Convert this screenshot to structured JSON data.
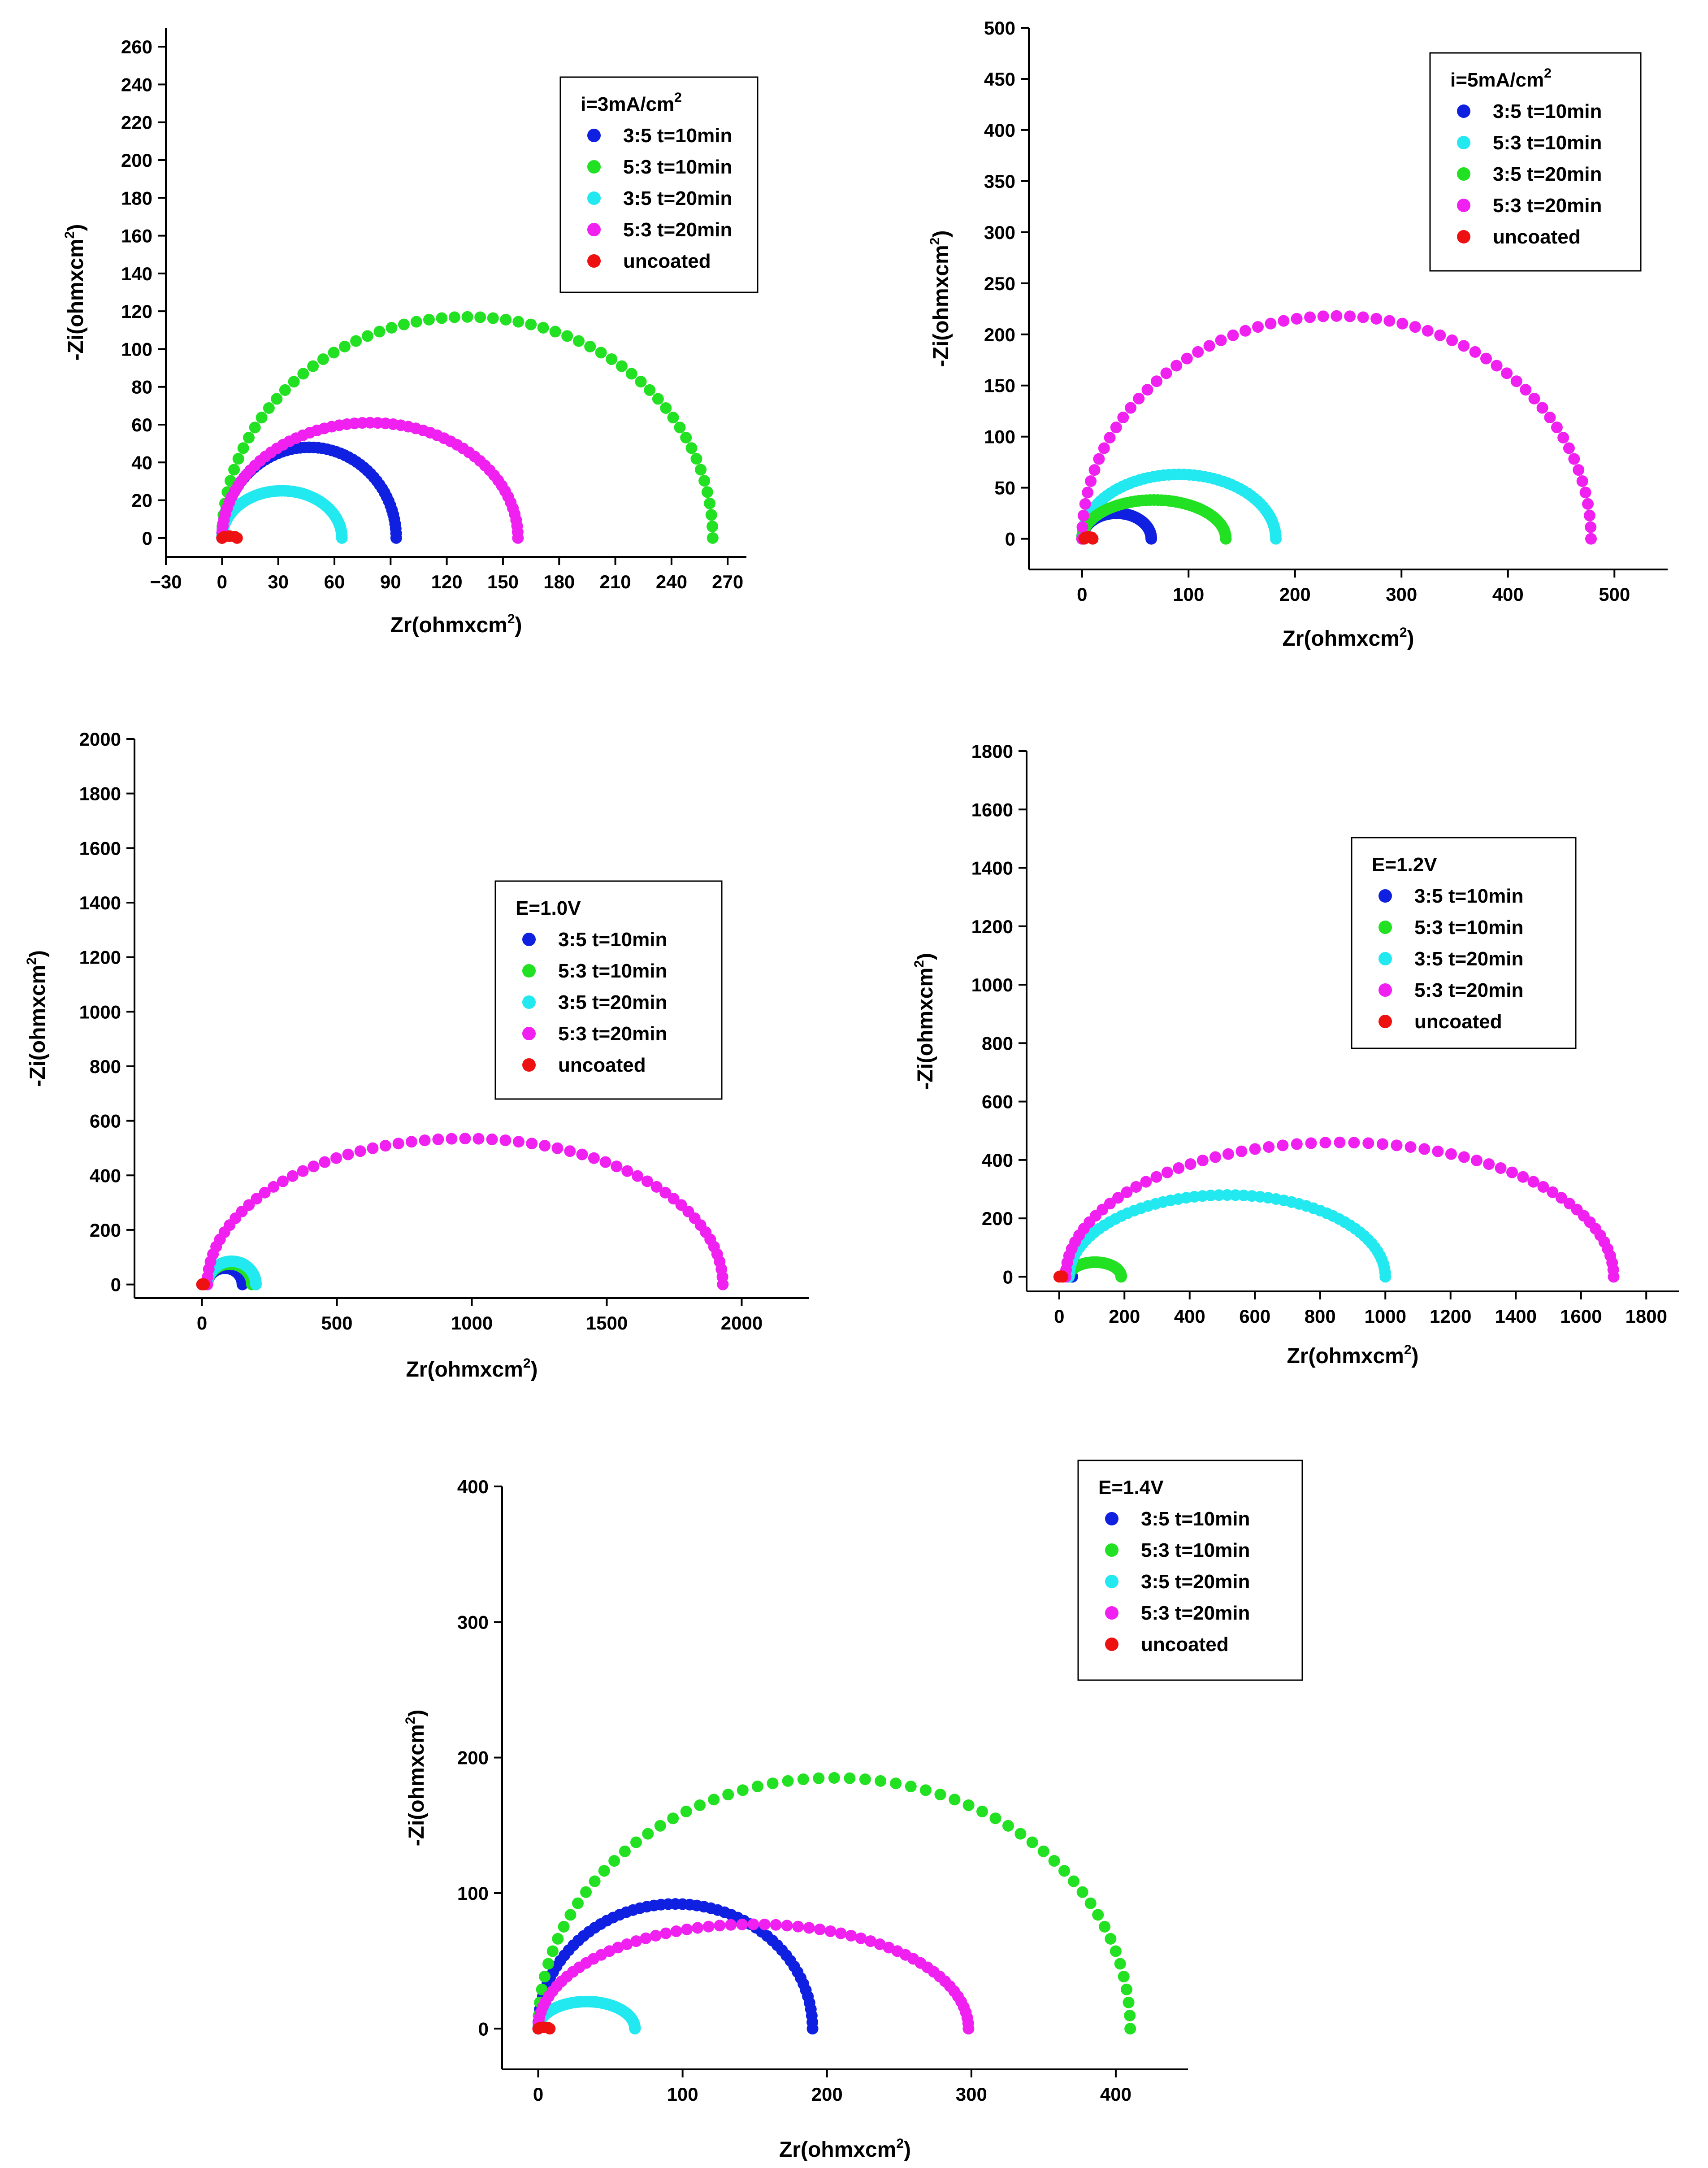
{
  "chart_data": [
    {
      "type": "scatter",
      "title": "",
      "xlabel": "Zr(ohmxcm",
      "ylabel": "-Zi(ohmxcm",
      "label_sup": "2",
      "xlim": [
        -30,
        280
      ],
      "ylim": [
        -10,
        270
      ],
      "xticks": [
        -30,
        0,
        30,
        60,
        90,
        120,
        150,
        180,
        210,
        240,
        270
      ],
      "yticks": [
        0,
        20,
        40,
        60,
        80,
        100,
        120,
        140,
        160,
        180,
        200,
        220,
        240,
        260
      ],
      "legend": {
        "position": "top-right",
        "title": "i=3mA/cm",
        "title_sup": "2"
      },
      "series": [
        {
          "name": "3:5 t=10min",
          "color": "#1020e0",
          "start": 0,
          "end": 93,
          "peak": 48
        },
        {
          "name": "5:3 t=10min",
          "color": "#22e022",
          "start": 0,
          "end": 262,
          "peak": 117
        },
        {
          "name": "3:5 t=20min",
          "color": "#22e8f0",
          "start": 0,
          "end": 64,
          "peak": 25
        },
        {
          "name": "5:3 t=20min",
          "color": "#f020f0",
          "start": 0,
          "end": 158,
          "peak": 61
        },
        {
          "name": "uncoated",
          "color": "#ee1111",
          "start": 0,
          "end": 8,
          "peak": 1
        }
      ]
    },
    {
      "type": "scatter",
      "title": "",
      "xlabel": "Zr(ohmxcm",
      "ylabel": "-Zi(ohmxcm",
      "label_sup": "2",
      "xlim": [
        -50,
        550
      ],
      "ylim": [
        -30,
        500
      ],
      "xticks": [
        0,
        100,
        200,
        300,
        400,
        500
      ],
      "yticks": [
        0,
        50,
        100,
        150,
        200,
        250,
        300,
        350,
        400,
        450,
        500
      ],
      "legend": {
        "position": "top-right",
        "title": "i=5mA/cm",
        "title_sup": "2"
      },
      "series": [
        {
          "name": "3:5 t=10min",
          "color": "#1020e0",
          "start": 0,
          "end": 65,
          "peak": 25
        },
        {
          "name": "5:3 t=10min",
          "color": "#22e8f0",
          "start": 0,
          "end": 182,
          "peak": 63
        },
        {
          "name": "3:5 t=20min",
          "color": "#22e022",
          "start": 0,
          "end": 135,
          "peak": 38
        },
        {
          "name": "5:3 t=20min",
          "color": "#f020f0",
          "start": 0,
          "end": 478,
          "peak": 218
        },
        {
          "name": "uncoated",
          "color": "#ee1111",
          "start": 2,
          "end": 10,
          "peak": 2
        }
      ]
    },
    {
      "type": "scatter",
      "title": "",
      "xlabel": "Zr(ohmxcm",
      "ylabel": "-Zi(ohmxcm",
      "label_sup": "2",
      "xlim": [
        -250,
        2250
      ],
      "ylim": [
        -50,
        2000
      ],
      "xticks": [
        0,
        500,
        1000,
        1500,
        2000
      ],
      "yticks": [
        0,
        200,
        400,
        600,
        800,
        1000,
        1200,
        1400,
        1600,
        1800,
        2000
      ],
      "legend": {
        "position": "right",
        "title": "E=1.0V",
        "title_sup": ""
      },
      "series": [
        {
          "name": "3:5 t=10min",
          "color": "#1020e0",
          "start": 20,
          "end": 150,
          "peak": 60
        },
        {
          "name": "5:3 t=10min",
          "color": "#22e022",
          "start": 20,
          "end": 185,
          "peak": 75
        },
        {
          "name": "3:5 t=20min",
          "color": "#22e8f0",
          "start": 20,
          "end": 200,
          "peak": 85
        },
        {
          "name": "5:3 t=20min",
          "color": "#f020f0",
          "start": 20,
          "end": 1930,
          "peak": 535
        },
        {
          "name": "uncoated",
          "color": "#ee1111",
          "start": 0,
          "end": 8,
          "peak": 2
        }
      ]
    },
    {
      "type": "scatter",
      "title": "",
      "xlabel": "Zr(ohmxcm",
      "ylabel": "-Zi(ohmxcm",
      "label_sup": "2",
      "xlim": [
        -100,
        1900
      ],
      "ylim": [
        -50,
        1800
      ],
      "xticks": [
        0,
        200,
        400,
        600,
        800,
        1000,
        1200,
        1400,
        1600,
        1800
      ],
      "yticks": [
        0,
        200,
        400,
        600,
        800,
        1000,
        1200,
        1400,
        1600,
        1800
      ],
      "legend": {
        "position": "top-right",
        "title": "E=1.2V",
        "title_sup": ""
      },
      "series": [
        {
          "name": "3:5 t=10min",
          "color": "#1020e0",
          "start": 30,
          "end": 40,
          "peak": 4
        },
        {
          "name": "5:3 t=10min",
          "color": "#22e022",
          "start": 30,
          "end": 190,
          "peak": 50
        },
        {
          "name": "3:5 t=20min",
          "color": "#22e8f0",
          "start": 30,
          "end": 1000,
          "peak": 280
        },
        {
          "name": "5:3 t=20min",
          "color": "#f020f0",
          "start": 20,
          "end": 1700,
          "peak": 460
        },
        {
          "name": "uncoated",
          "color": "#ee1111",
          "start": 0,
          "end": 10,
          "peak": 2
        }
      ]
    },
    {
      "type": "scatter",
      "title": "",
      "xlabel": "Zr(ohmxcm",
      "ylabel": "-Zi(ohmxcm",
      "label_sup": "2",
      "xlim": [
        -25,
        450
      ],
      "ylim": [
        -30,
        400
      ],
      "xticks": [
        0,
        100,
        200,
        300,
        400
      ],
      "yticks": [
        0,
        100,
        200,
        300,
        400
      ],
      "legend": {
        "position": "top-right",
        "title": "E=1.4V",
        "title_sup": ""
      },
      "series": [
        {
          "name": "3:5 t=10min",
          "color": "#1020e0",
          "start": 0,
          "end": 190,
          "peak": 92
        },
        {
          "name": "5:3 t=10min",
          "color": "#22e022",
          "start": 0,
          "end": 410,
          "peak": 185
        },
        {
          "name": "3:5 t=20min",
          "color": "#22e8f0",
          "start": 0,
          "end": 67,
          "peak": 20
        },
        {
          "name": "5:3 t=20min",
          "color": "#f020f0",
          "start": 0,
          "end": 298,
          "peak": 77
        },
        {
          "name": "uncoated",
          "color": "#ee1111",
          "start": 0,
          "end": 8,
          "peak": 1
        }
      ]
    }
  ]
}
